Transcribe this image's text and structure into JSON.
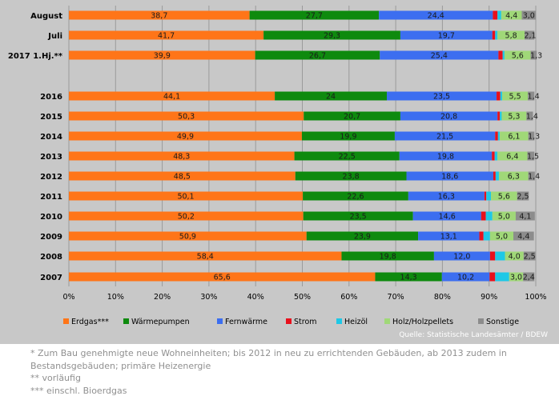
{
  "chart_data": {
    "type": "bar",
    "orientation": "horizontal",
    "stacked": true,
    "title": "",
    "categories": [
      "August",
      "Juli",
      "2017 1.Hj.**",
      "2016",
      "2015",
      "2014",
      "2013",
      "2012",
      "2011",
      "2010",
      "2009",
      "2008",
      "2007"
    ],
    "series": [
      {
        "name": "Erdgas***",
        "color": "#ff7518",
        "values": [
          38.7,
          41.7,
          39.9,
          44.1,
          50.3,
          49.9,
          48.3,
          48.5,
          50.1,
          50.2,
          50.9,
          58.4,
          65.6
        ],
        "labels": [
          "38,7",
          "41,7",
          "39,9",
          "44,1",
          "50,3",
          "49,9",
          "48,3",
          "48,5",
          "50,1",
          "50,2",
          "50,9",
          "58,4",
          "65,6"
        ]
      },
      {
        "name": "Wärmepumpen",
        "color": "#0e8a0e",
        "values": [
          27.7,
          29.3,
          26.7,
          24.0,
          20.7,
          19.9,
          22.5,
          23.8,
          22.6,
          23.5,
          23.9,
          19.8,
          14.3
        ],
        "labels": [
          "27,7",
          "29,3",
          "26,7",
          "24",
          "20,7",
          "19,9",
          "22,5",
          "23,8",
          "22,6",
          "23,5",
          "23,9",
          "19,8",
          "14,3"
        ]
      },
      {
        "name": "Fernwärme",
        "color": "#3c6ef0",
        "values": [
          24.4,
          19.7,
          25.4,
          23.5,
          20.8,
          21.5,
          19.8,
          18.6,
          16.3,
          14.6,
          13.1,
          12.0,
          10.2
        ],
        "labels": [
          "24,4",
          "19,7",
          "25,4",
          "23,5",
          "20,8",
          "21,5",
          "19,8",
          "18,6",
          "16,3",
          "14,6",
          "13,1",
          "12,0",
          "10,2"
        ]
      },
      {
        "name": "Strom",
        "color": "#e8101c",
        "values": [
          1.0,
          0.6,
          0.9,
          0.8,
          0.5,
          0.6,
          0.6,
          0.5,
          0.4,
          1.0,
          0.9,
          1.1,
          1.2
        ],
        "labels": [
          "",
          "",
          "",
          "",
          "",
          "",
          "",
          "",
          "",
          "",
          "",
          "",
          ""
        ]
      },
      {
        "name": "Heizöl",
        "color": "#1ec8e6",
        "values": [
          0.8,
          0.5,
          0.4,
          0.4,
          0.4,
          0.4,
          0.6,
          0.7,
          1.0,
          1.4,
          1.4,
          2.1,
          3.0
        ],
        "labels": [
          "",
          "",
          "",
          "",
          "",
          "",
          "",
          "",
          "",
          "",
          "",
          "",
          ""
        ]
      },
      {
        "name": "Holz/Holzpellets",
        "color": "#a0d878",
        "values": [
          4.4,
          5.8,
          5.6,
          5.5,
          5.3,
          6.1,
          6.4,
          6.3,
          5.6,
          5.0,
          5.0,
          4.0,
          3.0
        ],
        "labels": [
          "4,4",
          "5,8",
          "5,6",
          "5,5",
          "5,3",
          "6,1",
          "6,4",
          "6,3",
          "5,6",
          "5,0",
          "5,0",
          "4,0",
          "3,0"
        ]
      },
      {
        "name": "Sonstige",
        "color": "#8c8c8c",
        "values": [
          3.0,
          2.1,
          1.3,
          1.4,
          1.4,
          1.3,
          1.5,
          1.4,
          2.5,
          4.1,
          4.4,
          2.5,
          2.4
        ],
        "labels": [
          "3,0",
          "2,1",
          "1,3",
          "1,4",
          "1,4",
          "1,3",
          "1,5",
          "1,4",
          "2,5",
          "4,1",
          "4,4",
          "2,5",
          "2,4"
        ]
      }
    ],
    "xaxis": {
      "min": 0,
      "max": 100,
      "tick_labels": [
        "0%",
        "10%",
        "20%",
        "30%",
        "40%",
        "50%",
        "60%",
        "70%",
        "80%",
        "90%",
        "100%"
      ]
    },
    "grid": true,
    "legend_position": "bottom",
    "source": "Quelle: Statistische Landesämter / BDEW"
  },
  "footnotes": [
    "* Zum Bau genehmigte neue Wohneinheiten; bis 2012 in neu zu errichtenden Gebäuden, ab 2013 zudem in Bestandsgebäuden; primäre Heizenergie",
    "** vorläufig",
    "*** einschl. Bioerdgas"
  ]
}
